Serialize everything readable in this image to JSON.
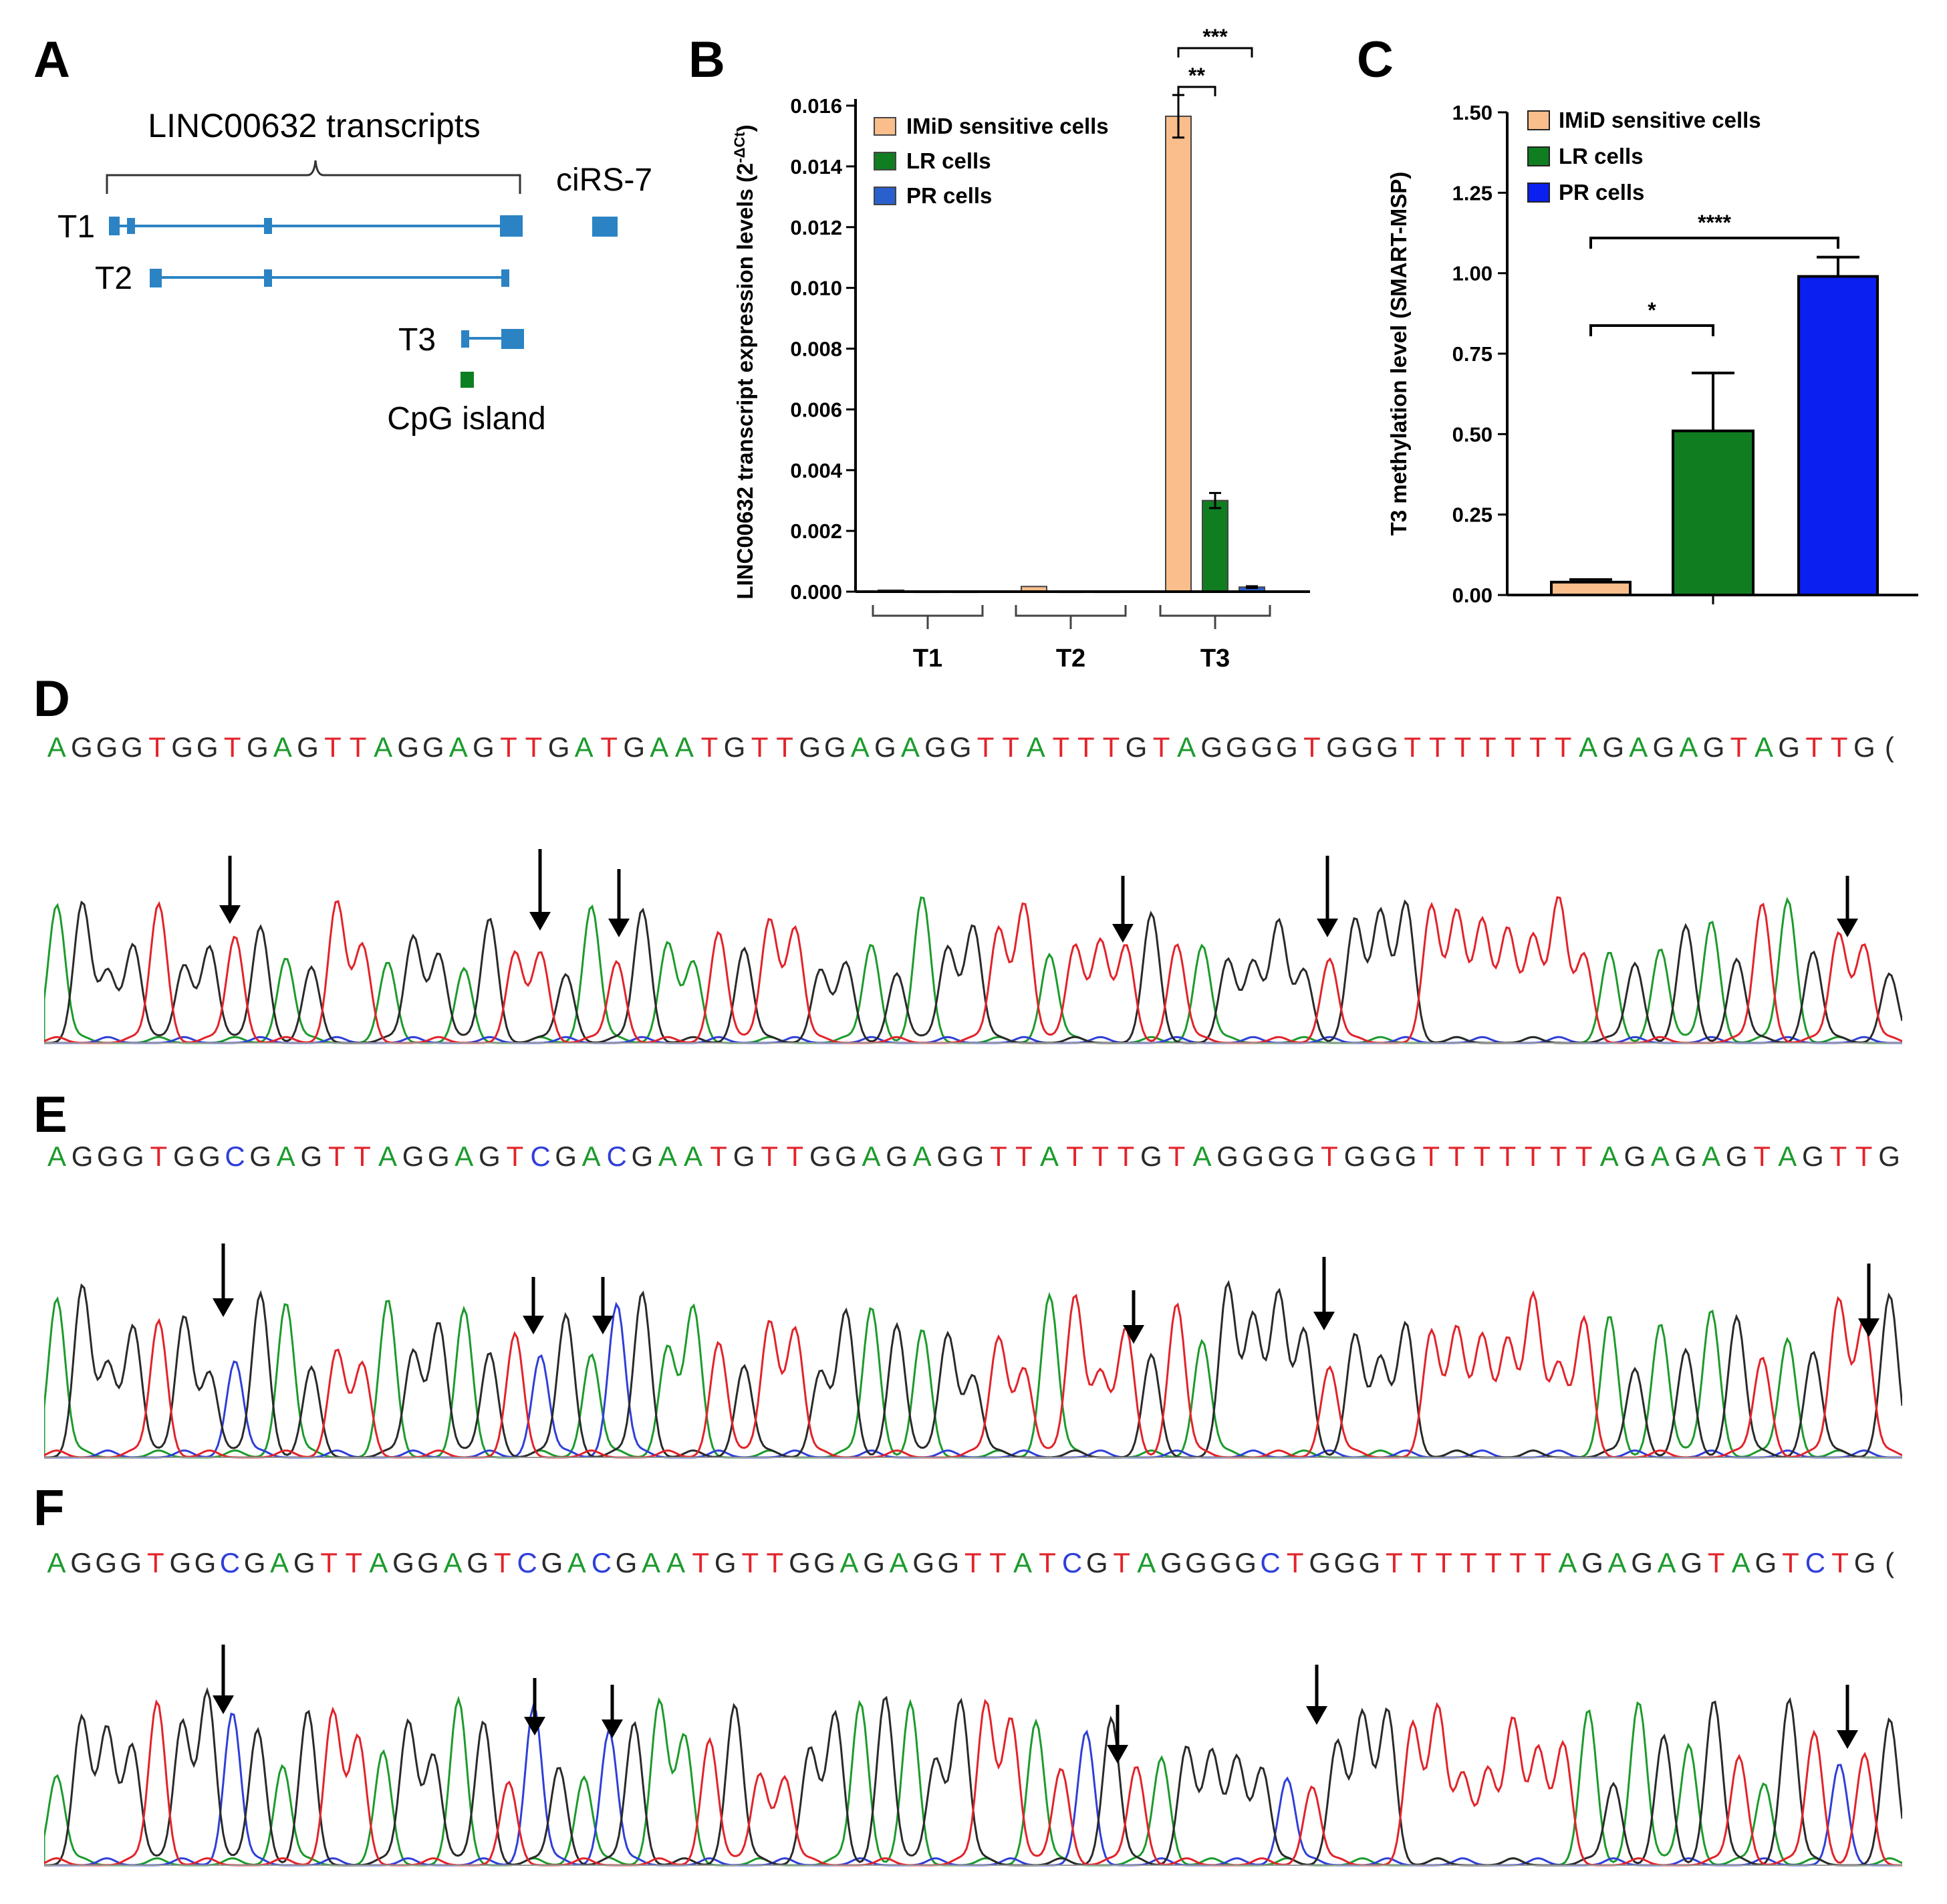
{
  "panels": {
    "A": "A",
    "B": "B",
    "C": "C",
    "D": "D",
    "E": "E",
    "F": "F"
  },
  "colors": {
    "transcript": "#2b83c4",
    "cpg": "#0b7f22",
    "imid": "#f9be8c",
    "lr": "#117d21",
    "pr_b": "#2a5fce",
    "pr_c": "#0a1ff0",
    "base_A": "#1c9b2c",
    "base_G": "#2a2a2a",
    "base_T": "#e2232a",
    "base_C": "#2f3fd8"
  },
  "panelA": {
    "group_label": "LINC00632 transcripts",
    "transcripts": [
      "T1",
      "T2",
      "T3"
    ],
    "circ_label": "ciRS-7",
    "cpg_label": "CpG island"
  },
  "chart_data": [
    {
      "type": "bar",
      "panel": "B",
      "ylabel": "LINC00632 transcript expression levels (2",
      "ylabel_sup": "-ΔCt",
      "ylabel_close": ")",
      "ylim": [
        0,
        0.016
      ],
      "yticks": [
        "0.000",
        "0.002",
        "0.004",
        "0.006",
        "0.008",
        "0.010",
        "0.012",
        "0.014",
        "0.016"
      ],
      "categories": [
        "T1",
        "T2",
        "T3"
      ],
      "series": [
        {
          "name": "IMiD sensitive cells",
          "values": [
            5e-05,
            0.00017,
            0.01565
          ],
          "errors": [
            0,
            0,
            0.0007
          ]
        },
        {
          "name": "LR cells",
          "values": [
            2e-05,
            2e-05,
            0.003
          ],
          "errors": [
            0,
            0,
            0.00025
          ]
        },
        {
          "name": "PR cells",
          "values": [
            2e-05,
            2e-05,
            0.00015
          ],
          "errors": [
            0,
            0,
            3e-05
          ]
        }
      ],
      "significance": [
        {
          "label": "**",
          "from": "IMiD sensitive cells",
          "to": "LR cells",
          "category": "T3"
        },
        {
          "label": "***",
          "from": "IMiD sensitive cells",
          "to": "PR cells",
          "category": "T3"
        }
      ],
      "legend_position": "top-left"
    },
    {
      "type": "bar",
      "panel": "C",
      "ylabel": "T3 methylation level (SMART-MSP)",
      "ylim": [
        0,
        1.5
      ],
      "yticks": [
        "0.00",
        "0.25",
        "0.50",
        "0.75",
        "1.00",
        "1.25",
        "1.50"
      ],
      "categories": [
        "IMiD sensitive cells",
        "LR cells",
        "PR cells"
      ],
      "values": [
        0.04,
        0.51,
        0.99
      ],
      "errors": [
        0.008,
        0.18,
        0.06
      ],
      "significance": [
        {
          "label": "*",
          "from": "IMiD sensitive cells",
          "to": "LR cells"
        },
        {
          "label": "****",
          "from": "IMiD sensitive cells",
          "to": "PR cells"
        }
      ],
      "legend_position": "top-left"
    }
  ],
  "sequences": {
    "D": "A G G G T G G T G A G T T A G G A G T T G A T G A A T G T T G G A G A G G T T A T T T G T A G G G G T G G G T T T T T T T A G A G A G T A G T T G (",
    "E": "A G G G T G G C G A G T T A G G A G T C G A C G A A T G T T G G A G A G G T T A T T T G T A G G G G T G G G T T T T T T T A G A G A G T A G T T G",
    "F": "A G G G T G G C G A G T T A G G A G T C G A C G A A T G T T G G A G A G G T T A T C G T A G G G G C T G G G T T T T T T T A G A G A G T A G T C T G ("
  }
}
